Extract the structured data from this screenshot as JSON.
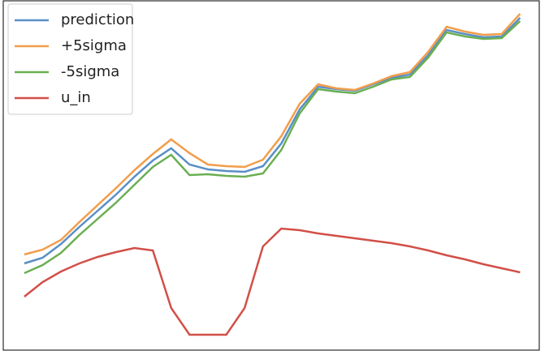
{
  "chart_data": {
    "type": "line",
    "x": [
      0,
      1,
      2,
      3,
      4,
      5,
      6,
      7,
      8,
      9,
      10,
      11,
      12,
      13,
      14,
      15,
      16,
      17,
      18,
      19,
      20,
      21,
      22,
      23,
      24,
      25,
      26,
      27
    ],
    "xlim": [
      -1.1,
      28.0
    ],
    "ylim": [
      2,
      432
    ],
    "legend": "upper left",
    "series": [
      {
        "name": "prediction",
        "color": "#5a8fc6",
        "values": [
          109,
          116,
          133,
          154,
          174,
          194,
          216,
          236,
          251,
          231,
          225,
          223,
          222,
          229,
          257,
          299,
          327,
          324,
          322,
          330,
          338,
          342,
          366,
          397,
          392,
          388,
          389,
          412
        ]
      },
      {
        "name": "+5sigma",
        "color": "#f29d4a",
        "values": [
          120,
          126,
          138,
          160,
          181,
          202,
          224,
          244,
          262,
          245,
          231,
          229,
          228,
          237,
          266,
          306,
          330,
          325,
          323,
          331,
          340,
          345,
          370,
          401,
          395,
          391,
          392,
          417
        ]
      },
      {
        "name": "-5sigma",
        "color": "#6aaf53",
        "values": [
          97,
          107,
          122,
          144,
          164,
          184,
          206,
          228,
          243,
          218,
          219,
          217,
          216,
          220,
          249,
          294,
          324,
          321,
          319,
          327,
          336,
          339,
          363,
          394,
          389,
          386,
          387,
          408
        ]
      },
      {
        "name": "u_in",
        "color": "#d24f47",
        "values": [
          68,
          86,
          99,
          109,
          117,
          123,
          128,
          125,
          54,
          21,
          21,
          21,
          54,
          130,
          152,
          150,
          146,
          143,
          140,
          137,
          134,
          130,
          125,
          119,
          114,
          108,
          103,
          98
        ]
      }
    ]
  }
}
